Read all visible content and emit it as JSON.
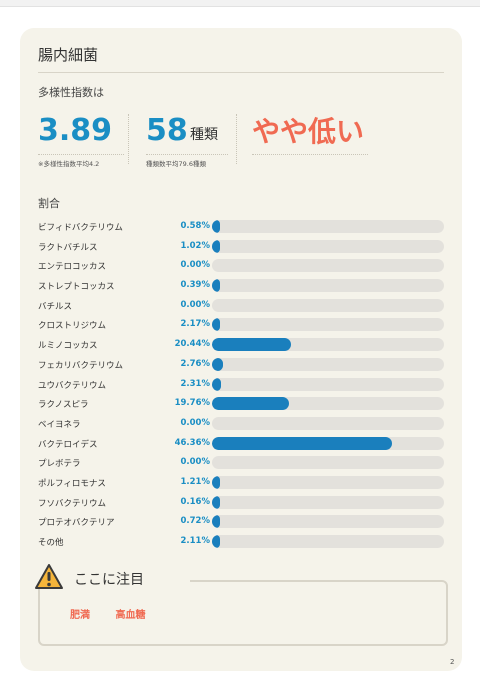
{
  "header": {
    "title": "腸内細菌"
  },
  "diversity": {
    "label": "多様性指数は",
    "index_value": "3.89",
    "index_note": "※多様性指数平均4.2",
    "species_value": "58",
    "species_unit": "種類",
    "species_note": "種類数平均79.6種類",
    "rating": "やや低い"
  },
  "ratio": {
    "label": "割合",
    "items": [
      {
        "name": "ビフィドバクテリウム",
        "pct_label": "0.58%",
        "value": 0.58
      },
      {
        "name": "ラクトバチルス",
        "pct_label": "1.02%",
        "value": 1.02
      },
      {
        "name": "エンテロコッカス",
        "pct_label": "0.00%",
        "value": 0.0
      },
      {
        "name": "ストレプトコッカス",
        "pct_label": "0.39%",
        "value": 0.39
      },
      {
        "name": "バチルス",
        "pct_label": "0.00%",
        "value": 0.0
      },
      {
        "name": "クロストリジウム",
        "pct_label": "2.17%",
        "value": 2.17
      },
      {
        "name": "ルミノコッカス",
        "pct_label": "20.44%",
        "value": 20.44
      },
      {
        "name": "フェカリバクテリウム",
        "pct_label": "2.76%",
        "value": 2.76
      },
      {
        "name": "ユウバクテリウム",
        "pct_label": "2.31%",
        "value": 2.31
      },
      {
        "name": "ラクノスピラ",
        "pct_label": "19.76%",
        "value": 19.76
      },
      {
        "name": "ベイヨネラ",
        "pct_label": "0.00%",
        "value": 0.0
      },
      {
        "name": "バクテロイデス",
        "pct_label": "46.36%",
        "value": 46.36
      },
      {
        "name": "プレボテラ",
        "pct_label": "0.00%",
        "value": 0.0
      },
      {
        "name": "ポルフィロモナス",
        "pct_label": "1.21%",
        "value": 1.21
      },
      {
        "name": "フソバクテリウム",
        "pct_label": "0.16%",
        "value": 0.16
      },
      {
        "name": "プロテオバクテリア",
        "pct_label": "0.72%",
        "value": 0.72
      },
      {
        "name": "その他",
        "pct_label": "2.11%",
        "value": 2.11
      }
    ]
  },
  "notice": {
    "title": "ここに注目",
    "icon": "warning-icon",
    "tags": [
      "肥満",
      "高血糖"
    ]
  },
  "footer": {
    "page_number": "2"
  },
  "colors": {
    "accent": "#1a8ec4",
    "bar": "#1a7fbd",
    "warn": "#f06a52",
    "card": "#f5f3ea"
  }
}
